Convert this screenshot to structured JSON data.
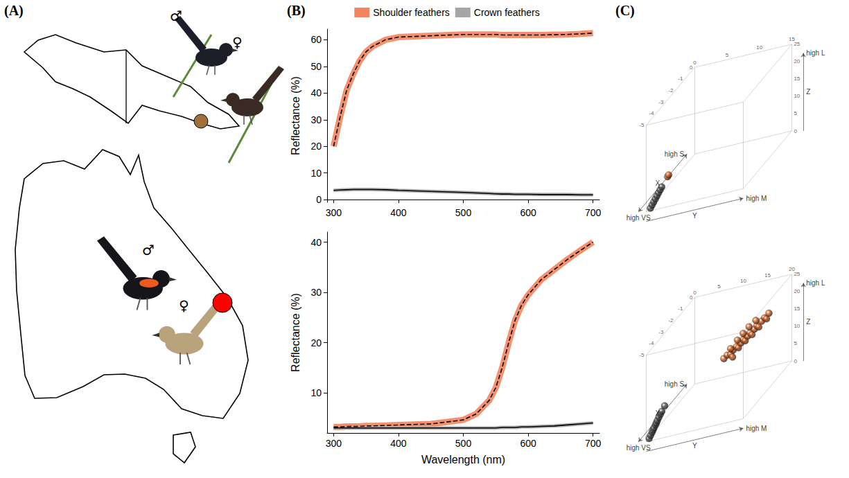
{
  "panel_labels": [
    "(A)",
    "(B)",
    "(C)"
  ],
  "map": {
    "birds": [
      {
        "sex": "♂",
        "color": "#1c1f2a"
      },
      {
        "sex": "♀",
        "color": "#3a2a24"
      },
      {
        "sex": "♂",
        "color": "#15151a",
        "patch": "#f05a1e"
      },
      {
        "sex": "♀",
        "color": "#b9a37c"
      }
    ],
    "sites": [
      {
        "color": "#a0703a"
      },
      {
        "color": "#ff0000"
      }
    ]
  },
  "chart_data": [
    {
      "type": "line",
      "y_label": "Reflectance (%)",
      "x": [
        300,
        310,
        320,
        330,
        340,
        350,
        360,
        380,
        400,
        450,
        500,
        520,
        540,
        550,
        560,
        570,
        580,
        590,
        600,
        620,
        640,
        660,
        680,
        700
      ],
      "series": [
        {
          "name": "Shoulder feathers",
          "color": "#f4845f",
          "line_style": "dashed",
          "values": [
            20,
            31,
            41,
            47,
            52,
            55.5,
            57.5,
            60,
            61,
            61.5,
            62,
            62,
            62,
            62,
            61.8,
            61.8,
            61.8,
            61.8,
            61.8,
            61.8,
            61.9,
            62,
            62.2,
            62.5
          ]
        },
        {
          "name": "Crown feathers",
          "color": "#a6a6a6",
          "line_style": "solid",
          "values": [
            3.5,
            3.6,
            3.7,
            3.8,
            3.8,
            3.8,
            3.8,
            3.7,
            3.5,
            3.1,
            2.7,
            2.5,
            2.3,
            2.2,
            2.1,
            2.1,
            2.0,
            2.0,
            2.0,
            1.9,
            1.9,
            1.9,
            1.8,
            1.8
          ]
        }
      ],
      "xlim": [
        290,
        710
      ],
      "xticks": [
        300,
        400,
        500,
        600,
        700
      ],
      "ylim": [
        -1,
        64
      ],
      "yticks": [
        0,
        10,
        20,
        30,
        40,
        50,
        60
      ],
      "legend": "top",
      "grid": false
    },
    {
      "type": "line",
      "y_label": "Reflectance (%)",
      "x_label": "Wavelength (nm)",
      "x": [
        300,
        310,
        320,
        330,
        340,
        350,
        360,
        380,
        400,
        450,
        500,
        520,
        540,
        550,
        560,
        570,
        580,
        590,
        600,
        620,
        640,
        660,
        680,
        700
      ],
      "series": [
        {
          "name": "Shoulder feathers",
          "color": "#f4845f",
          "line_style": "dashed",
          "values": [
            3.2,
            3.2,
            3.3,
            3.3,
            3.3,
            3.4,
            3.4,
            3.5,
            3.6,
            3.8,
            4.6,
            5.8,
            8.5,
            11,
            15,
            20,
            24.5,
            27.5,
            29.5,
            32.5,
            34.5,
            36.5,
            38.3,
            40
          ]
        },
        {
          "name": "Crown feathers",
          "color": "#a6a6a6",
          "line_style": "solid",
          "values": [
            3.0,
            3.0,
            3.0,
            3.0,
            3.0,
            3.0,
            3.0,
            3.0,
            3.0,
            3.0,
            3.0,
            3.0,
            3.0,
            3.0,
            3.1,
            3.1,
            3.1,
            3.2,
            3.2,
            3.3,
            3.4,
            3.6,
            3.8,
            4.0
          ]
        }
      ],
      "xlim": [
        290,
        710
      ],
      "xticks": [
        300,
        400,
        500,
        600,
        700
      ],
      "ylim": [
        2,
        42
      ],
      "yticks": [
        10,
        20,
        30,
        40
      ],
      "legend": "top",
      "grid": false
    },
    {
      "type": "scatter3d",
      "x_label": "X",
      "y_label": "Y",
      "z_label": "Z",
      "x_ends": [
        "high VS",
        "high S"
      ],
      "y_end": "high M",
      "z_end": "high L",
      "xlim": [
        -5,
        0
      ],
      "xticks": [
        -5,
        -4,
        -3,
        -2,
        -1,
        0
      ],
      "ylim": [
        0,
        15
      ],
      "yticks": [
        0,
        5,
        10,
        15
      ],
      "zlim": [
        0,
        25
      ],
      "zticks": [
        0,
        5,
        10,
        15,
        20,
        25
      ],
      "series": [
        {
          "color": "#4d4d4d",
          "points": [
            [
              -4.9,
              0.5,
              0.5
            ],
            [
              -4.8,
              0.6,
              1.0
            ],
            [
              -4.7,
              0.7,
              1.5
            ],
            [
              -4.6,
              0.8,
              2.0
            ],
            [
              -4.5,
              0.9,
              2.5
            ],
            [
              -4.4,
              1.0,
              3.0
            ],
            [
              -4.3,
              1.1,
              3.5
            ],
            [
              -4.2,
              1.2,
              4.0
            ]
          ]
        },
        {
          "color": "#d2601e",
          "points": [
            [
              -4.0,
              1.8,
              6.0
            ],
            [
              -3.95,
              1.9,
              6.3
            ]
          ]
        }
      ]
    },
    {
      "type": "scatter3d",
      "x_label": "X",
      "y_label": "Y",
      "z_label": "Z",
      "x_ends": [
        "high VS",
        "high S"
      ],
      "y_end": "high M",
      "z_end": "high L",
      "xlim": [
        -5,
        0
      ],
      "xticks": [
        -5,
        -4,
        -3,
        -2,
        -1,
        0
      ],
      "ylim": [
        0,
        20
      ],
      "yticks": [
        0,
        5,
        10,
        15,
        20
      ],
      "zlim": [
        0,
        25
      ],
      "zticks": [
        0,
        5,
        10,
        15,
        20,
        25
      ],
      "series": [
        {
          "color": "#4d4d4d",
          "points": [
            [
              -4.9,
              0.4,
              0.5
            ],
            [
              -4.8,
              0.5,
              1.0
            ],
            [
              -4.7,
              0.6,
              1.5
            ],
            [
              -4.65,
              0.7,
              2.0
            ],
            [
              -4.6,
              0.8,
              2.4
            ],
            [
              -4.5,
              0.9,
              2.9
            ],
            [
              -4.45,
              1.0,
              3.3
            ],
            [
              -4.4,
              1.1,
              3.8
            ],
            [
              -4.3,
              1.2,
              4.3
            ],
            [
              -4.2,
              1.3,
              4.8
            ],
            [
              -4.1,
              1.4,
              5.3
            ],
            [
              -3.9,
              1.6,
              6.2
            ]
          ]
        },
        {
          "color": "#d2601e",
          "points": [
            [
              -2.5,
              11.0,
              12.0
            ],
            [
              -2.4,
              11.5,
              12.5
            ],
            [
              -2.3,
              12.0,
              12.2
            ],
            [
              -2.2,
              12.3,
              13.0
            ],
            [
              -2.1,
              12.8,
              13.5
            ],
            [
              -2.0,
              13.0,
              12.8
            ],
            [
              -2.0,
              13.5,
              14.0
            ],
            [
              -1.9,
              13.8,
              14.5
            ],
            [
              -1.8,
              14.0,
              13.8
            ],
            [
              -1.8,
              14.5,
              15.0
            ],
            [
              -1.7,
              14.8,
              15.5
            ],
            [
              -1.6,
              15.0,
              14.6
            ],
            [
              -1.6,
              15.5,
              16.0
            ],
            [
              -1.5,
              15.8,
              16.5
            ],
            [
              -1.4,
              16.0,
              15.8
            ],
            [
              -1.3,
              16.4,
              17.0
            ],
            [
              -1.2,
              16.8,
              17.5
            ],
            [
              -1.1,
              17.0,
              16.8
            ],
            [
              -1.0,
              17.3,
              18.0
            ],
            [
              -2.2,
              11.8,
              13.6
            ],
            [
              -1.9,
              12.6,
              14.8
            ],
            [
              -1.7,
              13.4,
              15.8
            ],
            [
              -1.5,
              14.2,
              16.8
            ],
            [
              -1.3,
              15.2,
              17.6
            ],
            [
              -2.4,
              12.6,
              11.6
            ]
          ]
        }
      ]
    }
  ]
}
